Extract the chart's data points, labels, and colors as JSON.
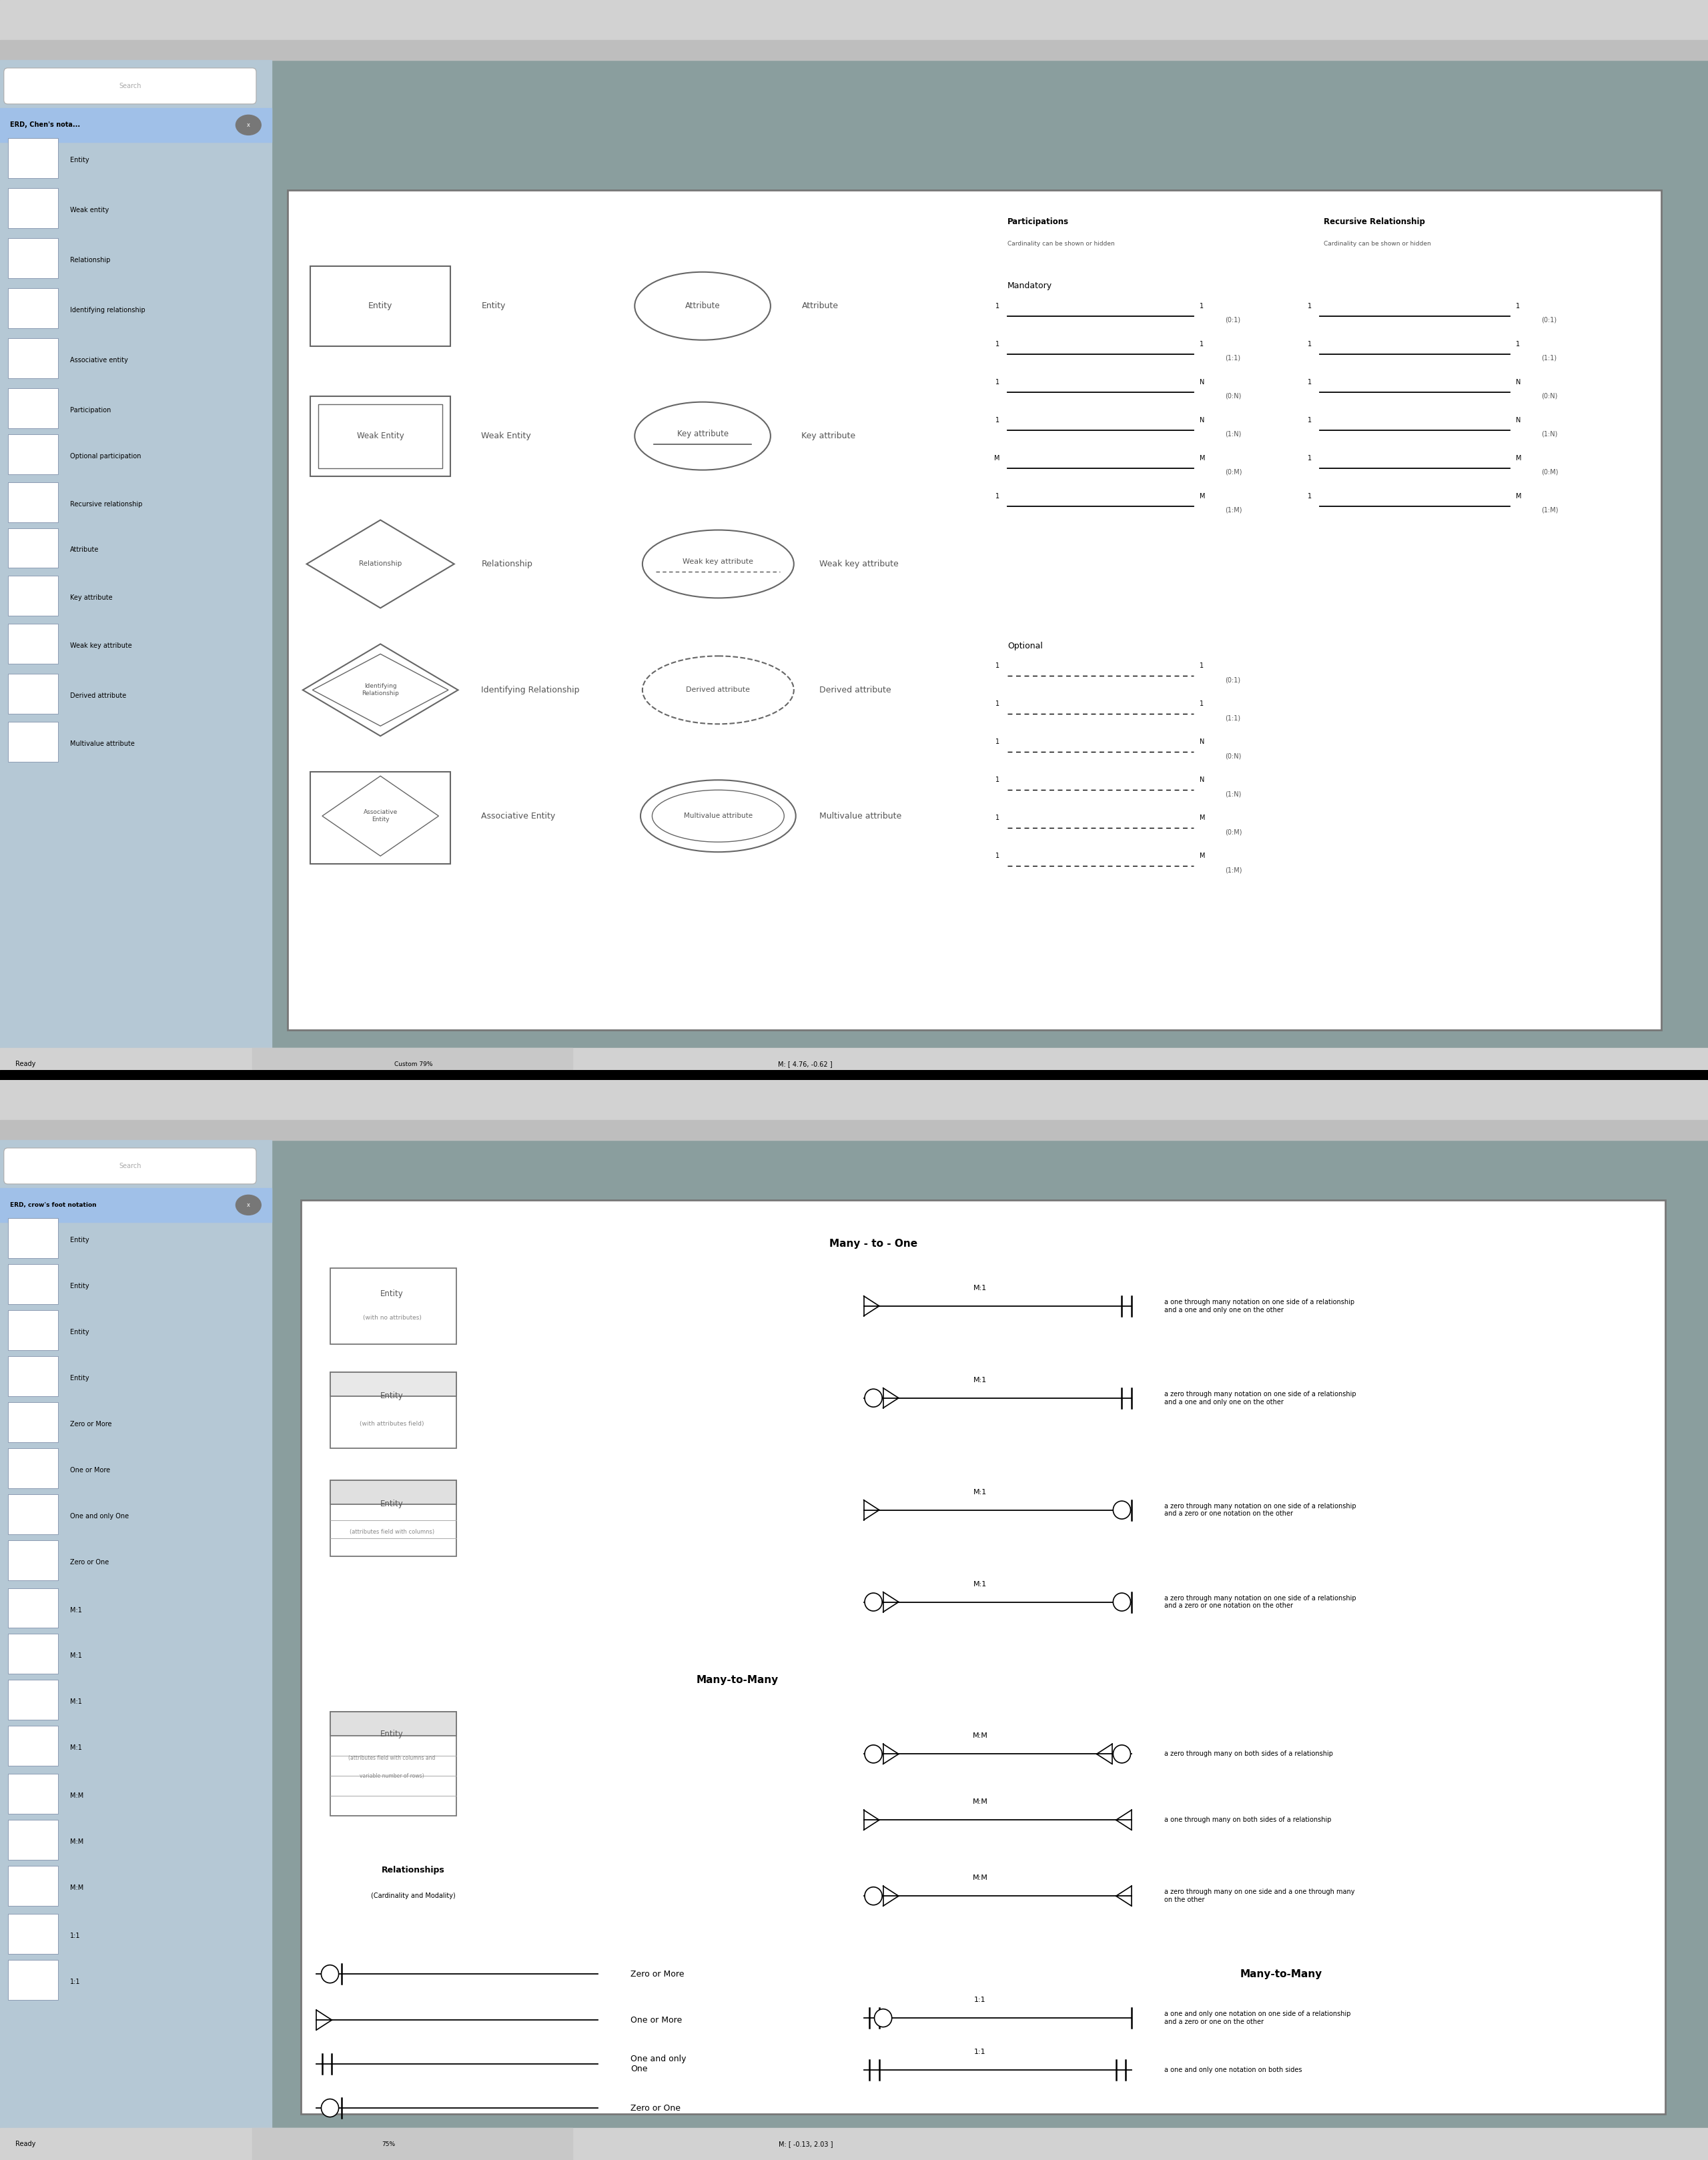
{
  "bg": "#8a9e9e",
  "panel_bg": "#b5c8d5",
  "canvas_bg": "#ffffff",
  "toolbar_bg": "#d8d8d8",
  "hdr_bg": "#a0c0e8",
  "text_dark": "#222222",
  "text_mid": "#555555",
  "text_light": "#888888",
  "edge_color": "#666666",
  "top_sidebar": [
    "Entity",
    "Weak entity",
    "Relationship",
    "Identifying relationship",
    "Associative entity",
    "Participation",
    "Optional participation",
    "Recursive relationship",
    "Attribute",
    "Key attribute",
    "Weak key attribute",
    "Derived attribute",
    "Multivalue attribute"
  ],
  "bot_sidebar": [
    "Entity",
    "Entity",
    "Entity",
    "Entity",
    "Zero or More",
    "One or More",
    "One and only One",
    "Zero or One",
    "M:1",
    "M:1",
    "M:1",
    "M:1",
    "M:M",
    "M:M",
    "M:M",
    "1:1",
    "1:1"
  ],
  "mand_notations": [
    "(0:1)",
    "(1:1)",
    "(0:N)",
    "(1:N)",
    "(0:M)",
    "(1:M)"
  ],
  "mand_l1": [
    "1",
    "1",
    "1",
    "1",
    "M",
    "1"
  ],
  "mand_l2": [
    "1",
    "1",
    "N",
    "N",
    "M",
    "M"
  ]
}
